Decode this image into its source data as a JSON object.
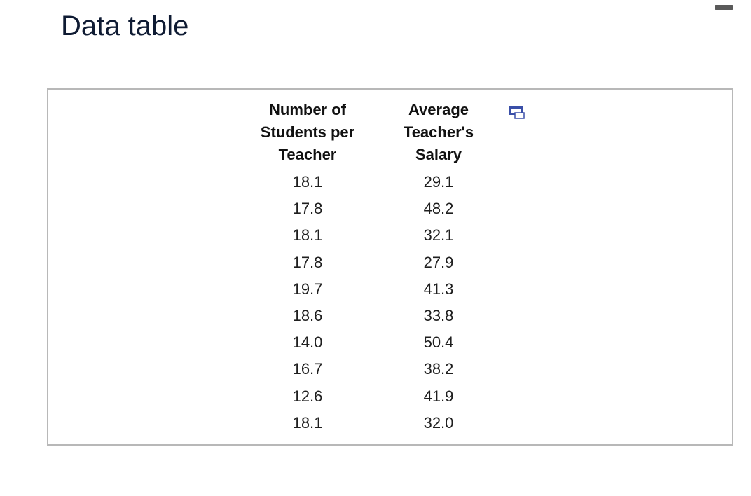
{
  "header": {
    "title": "Data table"
  },
  "table": {
    "columns": [
      "Number of Students per Teacher",
      "Average Teacher's Salary"
    ],
    "rows": [
      [
        "18.1",
        "29.1"
      ],
      [
        "17.8",
        "48.2"
      ],
      [
        "18.1",
        "32.1"
      ],
      [
        "17.8",
        "27.9"
      ],
      [
        "19.7",
        "41.3"
      ],
      [
        "18.6",
        "33.8"
      ],
      [
        "14.0",
        "50.4"
      ],
      [
        "16.7",
        "38.2"
      ],
      [
        "12.6",
        "41.9"
      ],
      [
        "18.1",
        "32.0"
      ]
    ]
  }
}
